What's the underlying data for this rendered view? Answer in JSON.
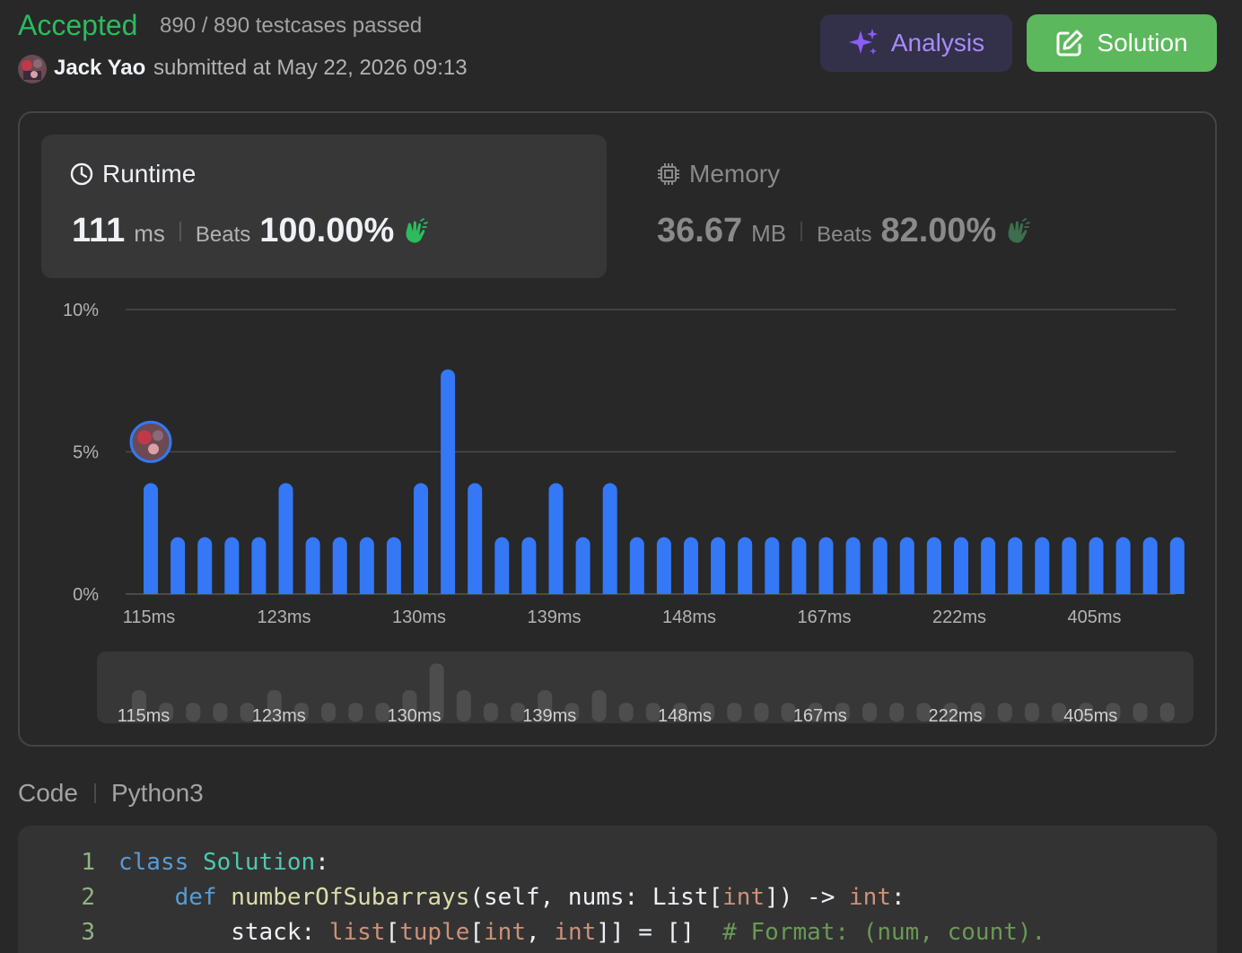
{
  "header": {
    "status": "Accepted",
    "testcases": "890 / 890 testcases passed",
    "submitter": "Jack Yao",
    "submitted_at": "submitted at May 22, 2026 09:13",
    "analysis_label": "Analysis",
    "solution_label": "Solution"
  },
  "runtime": {
    "title": "Runtime",
    "value": "111",
    "unit": "ms",
    "beats_label": "Beats",
    "beats": "100.00%"
  },
  "memory": {
    "title": "Memory",
    "value": "36.67",
    "unit": "MB",
    "beats_label": "Beats",
    "beats": "82.00%"
  },
  "chart_data": {
    "type": "bar",
    "y_ticks": [
      "10%",
      "5%",
      "0%"
    ],
    "ylim": [
      0,
      10
    ],
    "x_tick_labels": [
      "115ms",
      "123ms",
      "130ms",
      "139ms",
      "148ms",
      "167ms",
      "222ms",
      "405ms"
    ],
    "values": [
      3.9,
      2.0,
      2.0,
      2.0,
      2.0,
      3.9,
      2.0,
      2.0,
      2.0,
      2.0,
      3.9,
      7.9,
      3.9,
      2.0,
      2.0,
      3.9,
      2.0,
      3.9,
      2.0,
      2.0,
      2.0,
      2.0,
      2.0,
      2.0,
      2.0,
      2.0,
      2.0,
      2.0,
      2.0,
      2.0,
      2.0,
      2.0,
      2.0,
      2.0,
      2.0,
      2.0,
      2.0,
      2.0,
      2.0
    ],
    "highlight_index": 0,
    "bar_color": "#3478f6",
    "grid": true
  },
  "code": {
    "label": "Code",
    "language": "Python3"
  },
  "colors": {
    "accepted": "#2cbb5d",
    "analysis": "#a78bfa",
    "solution_bg": "#5cb85c"
  }
}
